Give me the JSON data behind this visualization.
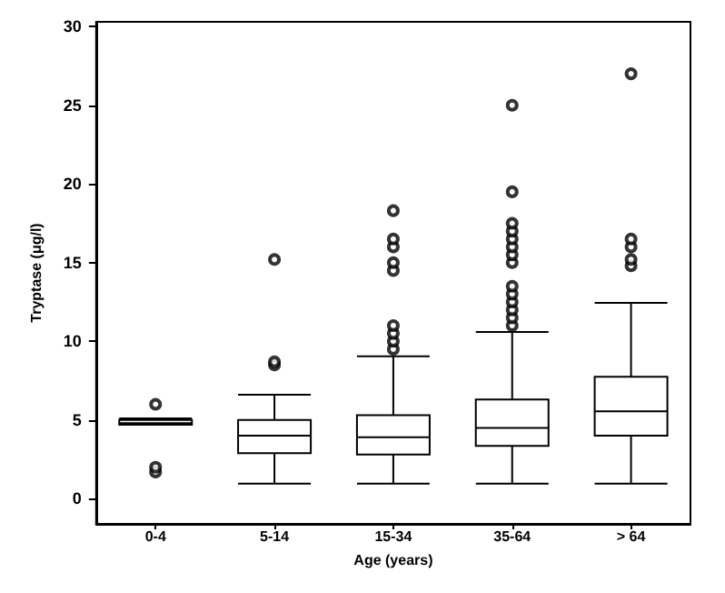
{
  "chart_data": {
    "type": "box",
    "xlabel": "Age (years)",
    "ylabel": "Tryptase (μg/l)",
    "categories": [
      "0-4",
      "5-14",
      "15-34",
      "35-64",
      "> 64"
    ],
    "boxes": [
      {
        "low": 4.7,
        "q1": 4.7,
        "median": 4.8,
        "q3": 5.0,
        "high": 5.1,
        "outliers": [
          6.0,
          1.7,
          2.0
        ]
      },
      {
        "low": 0.95,
        "q1": 2.9,
        "median": 4.0,
        "q3": 5.0,
        "high": 6.6,
        "outliers": [
          8.5,
          8.7,
          15.2
        ]
      },
      {
        "low": 0.95,
        "q1": 2.8,
        "median": 3.9,
        "q3": 5.3,
        "high": 9.05,
        "outliers": [
          9.5,
          10.0,
          10.5,
          11.0,
          14.5,
          15.0,
          16.0,
          16.5,
          18.3
        ]
      },
      {
        "low": 0.95,
        "q1": 3.35,
        "median": 4.5,
        "q3": 6.3,
        "high": 10.6,
        "outliers": [
          11.0,
          11.5,
          12.0,
          12.5,
          13.0,
          13.5,
          15.0,
          15.5,
          16.0,
          16.5,
          17.0,
          17.5,
          19.5,
          25.0
        ]
      },
      {
        "low": 0.95,
        "q1": 4.0,
        "median": 5.55,
        "q3": 7.75,
        "high": 12.45,
        "outliers": [
          14.8,
          15.2,
          16.0,
          16.5,
          27.0
        ]
      }
    ],
    "color": "#000000",
    "ylim": [
      -1.6,
      30.3
    ],
    "yticks": [
      0,
      5,
      10,
      15,
      20,
      25,
      30
    ],
    "grid": false
  }
}
